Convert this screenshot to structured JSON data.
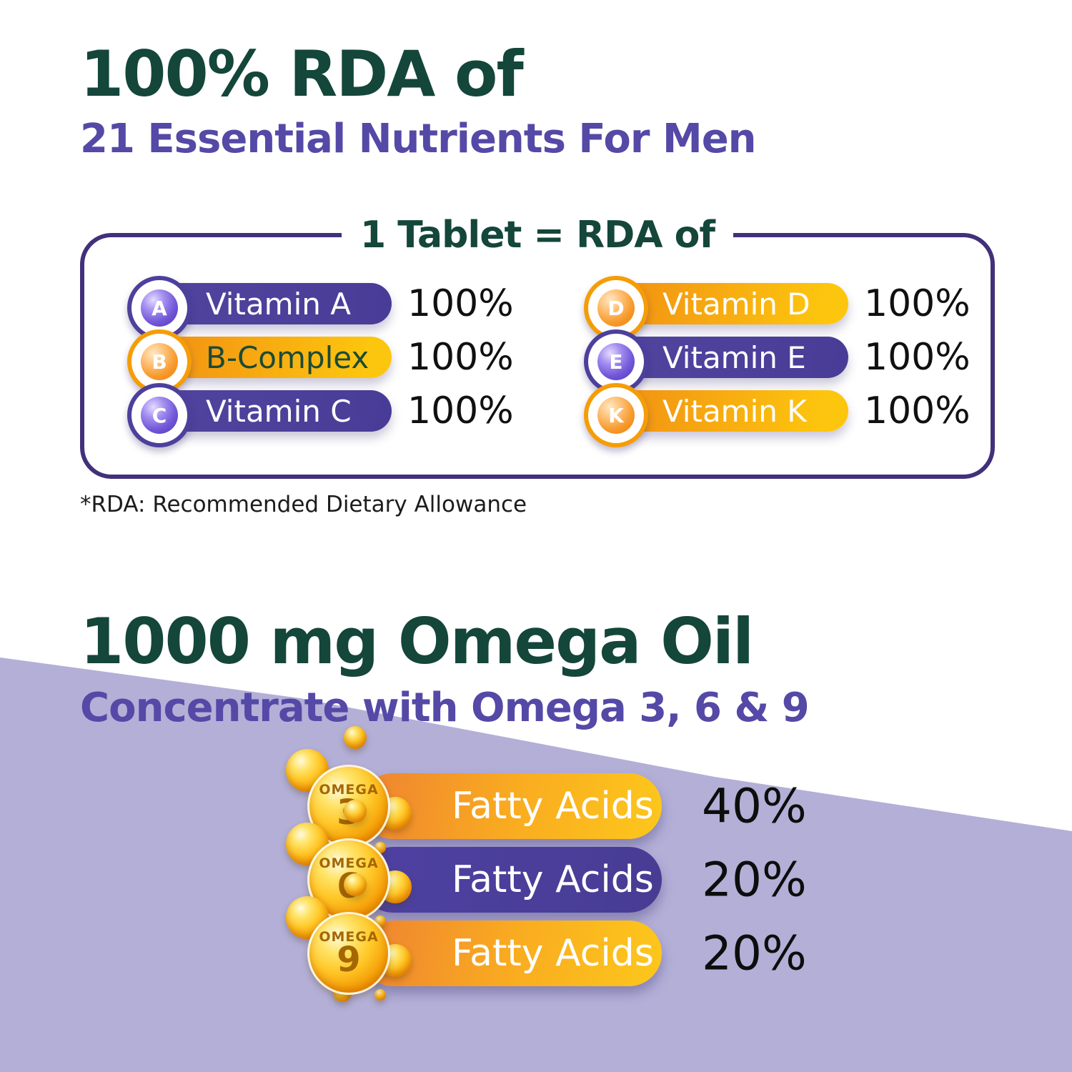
{
  "top_section": {
    "title": "100% RDA of",
    "subtitle": "21 Essential Nutrients For Men",
    "box_title": "1 Tablet = RDA of",
    "footnote": "*RDA: Recommended Dietary Allowance",
    "vitamins": [
      {
        "letter": "A",
        "label": "Vitamin A",
        "value": "100%",
        "style": "purple"
      },
      {
        "letter": "B",
        "label": "B-Complex",
        "value": "100%",
        "style": "orange"
      },
      {
        "letter": "C",
        "label": "Vitamin C",
        "value": "100%",
        "style": "purple"
      },
      {
        "letter": "D",
        "label": "Vitamin D",
        "value": "100%",
        "style": "orange"
      },
      {
        "letter": "E",
        "label": "Vitamin E",
        "value": "100%",
        "style": "purple"
      },
      {
        "letter": "K",
        "label": "Vitamin K",
        "value": "100%",
        "style": "orange"
      }
    ]
  },
  "bottom_section": {
    "title": "1000 mg Omega Oil",
    "subtitle": "Concentrate with Omega 3, 6 & 9",
    "omegas": [
      {
        "badge_word": "OMEGA",
        "badge_num": "3",
        "label": "Fatty Acids",
        "value": "40%",
        "style": "orange"
      },
      {
        "badge_word": "OMEGA",
        "badge_num": "6",
        "label": "Fatty Acids",
        "value": "20%",
        "style": "purple"
      },
      {
        "badge_word": "OMEGA",
        "badge_num": "9",
        "label": "Fatty Acids",
        "value": "20%",
        "style": "orange"
      }
    ]
  },
  "colors": {
    "heading_green": "#14463a",
    "heading_purple": "#5449a6",
    "pill_purple": "#4c409c",
    "pill_orange_start": "#f08a14",
    "pill_orange_end": "#fdc60e",
    "box_border_purple": "#43307a",
    "lavender_background": "#b3afd7",
    "percent_text": "#101010",
    "bubble_gold": "#f7a600",
    "b_complex_label_green": "#1c4a36"
  }
}
